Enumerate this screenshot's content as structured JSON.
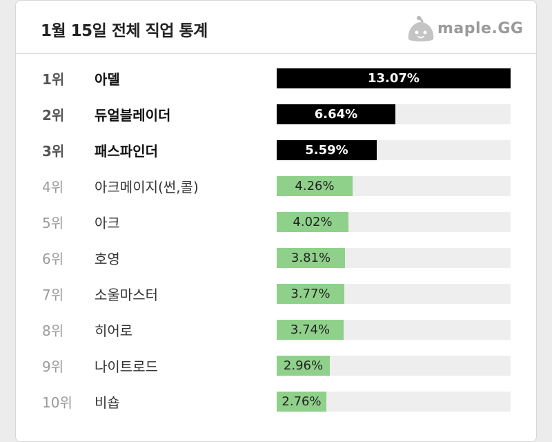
{
  "header": {
    "title": "1월 15일 전체 직업 통계",
    "logo_text": "maple.GG"
  },
  "colors": {
    "top_bar": "#000000",
    "other_bar": "#8fd18a",
    "track": "#eeeeee"
  },
  "chart_data": {
    "type": "bar",
    "orientation": "horizontal",
    "title": "1월 15일 전체 직업 통계",
    "xlim": [
      0,
      13.07
    ],
    "categories": [
      "아델",
      "듀얼블레이더",
      "패스파인더",
      "아크메이지(썬,콜)",
      "아크",
      "호영",
      "소울마스터",
      "히어로",
      "나이트로드",
      "비숍"
    ],
    "ranks": [
      "1위",
      "2위",
      "3위",
      "4위",
      "5위",
      "6위",
      "7위",
      "8위",
      "9위",
      "10위"
    ],
    "values": [
      13.07,
      6.64,
      5.59,
      4.26,
      4.02,
      3.81,
      3.77,
      3.74,
      2.96,
      2.76
    ],
    "value_labels": [
      "13.07%",
      "6.64%",
      "5.59%",
      "4.26%",
      "4.02%",
      "3.81%",
      "3.77%",
      "3.74%",
      "2.96%",
      "2.76%"
    ]
  }
}
